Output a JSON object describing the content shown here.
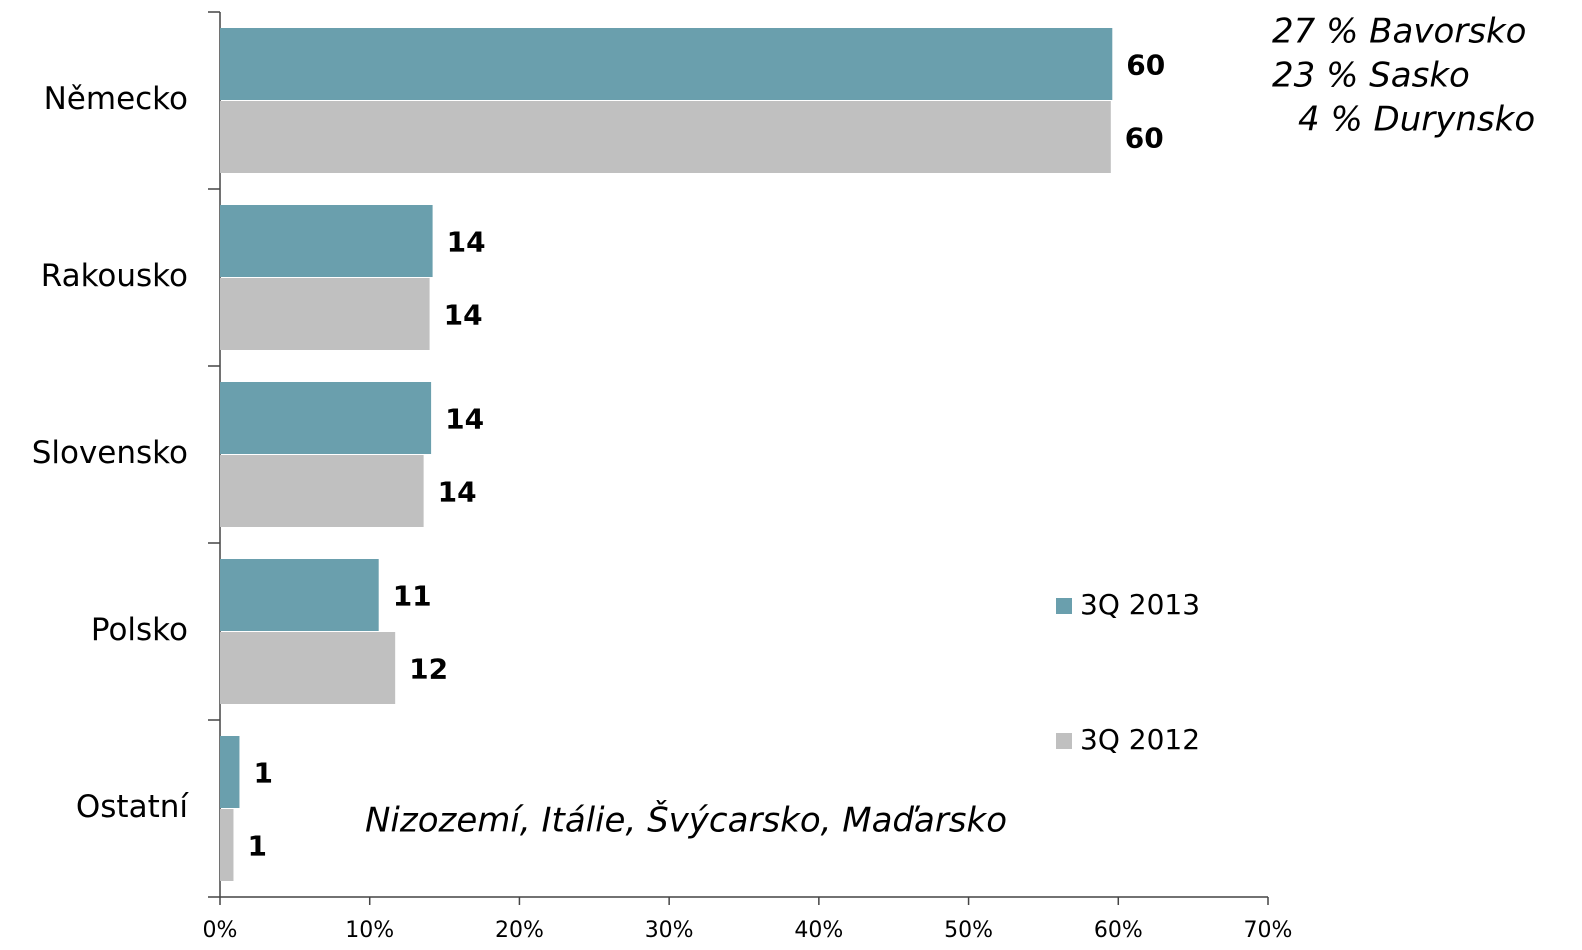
{
  "chart_data": {
    "type": "bar",
    "orientation": "horizontal",
    "categories": [
      "Německo",
      "Rakousko",
      "Slovensko",
      "Polsko",
      "Ostatní"
    ],
    "series": [
      {
        "name": "3Q 2013",
        "color": "#6a9fad",
        "values": [
          59.6,
          14.2,
          14.1,
          10.6,
          1.3
        ],
        "value_labels": [
          "60",
          "14",
          "14",
          "11",
          "1"
        ]
      },
      {
        "name": "3Q 2012",
        "color": "#c0c0c0",
        "values": [
          59.5,
          14.0,
          13.6,
          11.7,
          0.9
        ],
        "value_labels": [
          "60",
          "14",
          "14",
          "12",
          "1"
        ]
      }
    ],
    "xlim": [
      0,
      70
    ],
    "xticks": [
      {
        "value": 0,
        "label": "0%"
      },
      {
        "value": 10,
        "label": "10%"
      },
      {
        "value": 20,
        "label": "20%"
      },
      {
        "value": 30,
        "label": "30%"
      },
      {
        "value": 40,
        "label": "40%"
      },
      {
        "value": 50,
        "label": "50%"
      },
      {
        "value": 60,
        "label": "60%"
      },
      {
        "value": 70,
        "label": "70%"
      }
    ],
    "annotations": [
      "27 % Bavorsko",
      "23 % Sasko",
      "4 % Durynsko",
      "Nizozemí, Itálie, Švýcarsko, Maďarsko"
    ],
    "legend": "right"
  }
}
